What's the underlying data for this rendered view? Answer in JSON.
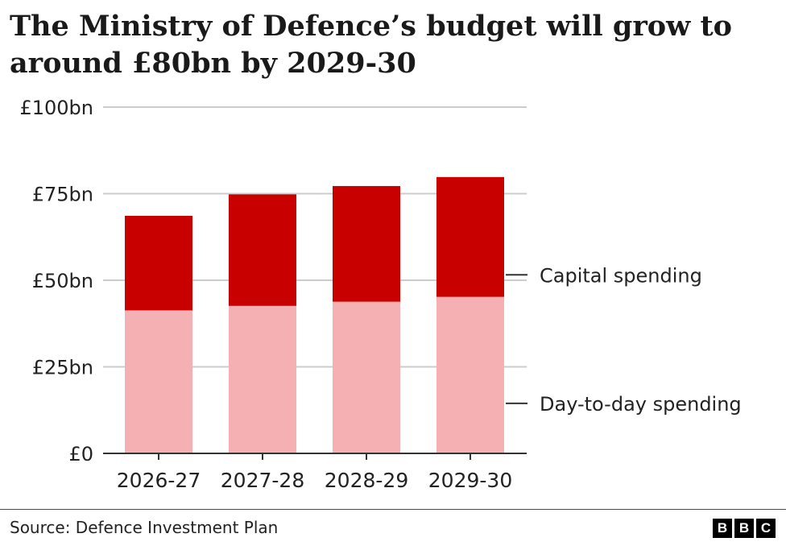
{
  "chart_data": {
    "type": "bar",
    "stacked": true,
    "title_lines": [
      "The Ministry of Defence’s budget will grow to",
      "around £80bn by 2029-30"
    ],
    "categories": [
      "2026-27",
      "2027-28",
      "2028-29",
      "2029-30"
    ],
    "series": [
      {
        "name": "Day-to-day spending",
        "values": [
          41.3,
          42.6,
          43.8,
          45.2
        ],
        "color": "#f5b0b3"
      },
      {
        "name": "Capital spending",
        "values": [
          27.3,
          32.2,
          33.4,
          34.6
        ],
        "color": "#c80000"
      }
    ],
    "yticks": [
      0,
      25,
      50,
      75,
      100
    ],
    "ytick_labels": [
      "£0",
      "£25bn",
      "£50bn",
      "£75bn",
      "£100bn"
    ],
    "ylim": [
      0,
      100
    ],
    "grid": true,
    "legend": "right, direct labels"
  },
  "source": "Source: Defence Investment Plan",
  "logo": [
    "B",
    "B",
    "C"
  ],
  "colors": {
    "gridline": "#cccccc",
    "axis": "#333333",
    "leader": "#333333"
  }
}
